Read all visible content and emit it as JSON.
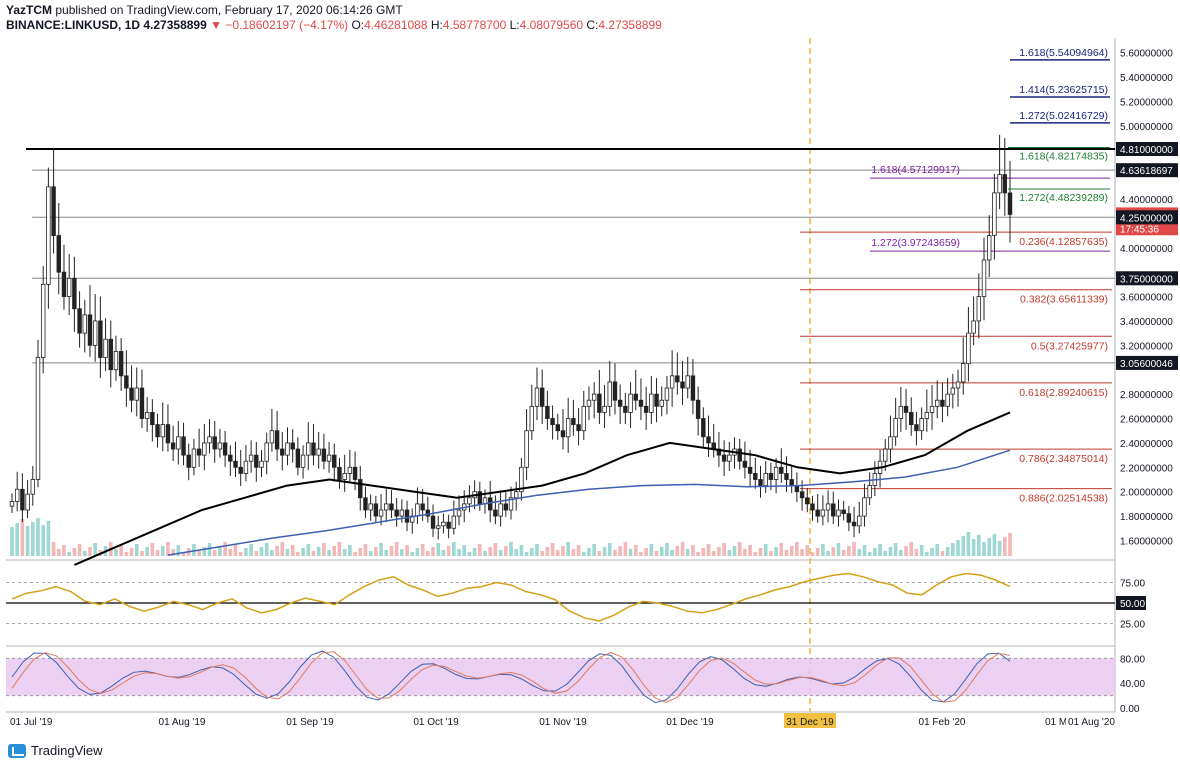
{
  "header": {
    "author": "YazTCM",
    "published_text": "published on TradingView.com, February 17, 2020 06:14:26 GMT",
    "symbol": "BINANCE:LINKUSD, 1D",
    "last": "4.27358899",
    "change_arrow": "▼",
    "change": "−0.18602197 (−4.17%)",
    "o_label": "O:",
    "o_value": "4.46281088",
    "h_label": "H:",
    "h_value": "4.58778700",
    "l_label": "L:",
    "l_value": "4.08079560",
    "c_label": "C:",
    "c_value": "4.27358899"
  },
  "branding": {
    "name": "TradingView"
  },
  "colors": {
    "up": "#26a69a",
    "down": "#e04848",
    "fib": "#c0392b",
    "fib_ext_green": "#1e7e34",
    "fib_ext_purple": "#7b1fa2",
    "fib_ext_blue": "#1a237e",
    "ma_black": "#000000",
    "ma_blue": "#3f5fb0",
    "rsi": "#d4a017",
    "stoch_band": "#e8c8f0"
  },
  "chart_data": {
    "type": "candlestick",
    "price_axis": {
      "ylim": [
        1.44,
        5.72
      ],
      "ticks": [
        "5.60000000",
        "5.40000000",
        "5.20000000",
        "5.00000000",
        "4.40000000",
        "4.00000000",
        "3.60000000",
        "3.40000000",
        "3.20000000",
        "2.80000000",
        "2.60000000",
        "2.40000000",
        "2.20000000",
        "2.00000000",
        "1.80000000",
        "1.60000000"
      ],
      "tick_values": [
        5.6,
        5.4,
        5.2,
        5.0,
        4.4,
        4.0,
        3.6,
        3.4,
        3.2,
        2.8,
        2.6,
        2.4,
        2.2,
        2.0,
        1.8,
        1.6
      ],
      "labels": [
        {
          "value": 4.81,
          "text": "4.81000000",
          "style": "dark"
        },
        {
          "value": 4.63618697,
          "text": "4.63618697",
          "style": "dark"
        },
        {
          "value": 4.27358899,
          "text": "4.27358899",
          "style": "red"
        },
        {
          "value": 4.16,
          "text": "17:45:36",
          "style": "red"
        },
        {
          "value": 4.25,
          "text": "4.25000000",
          "style": "dark"
        },
        {
          "value": 3.75,
          "text": "3.75000000",
          "style": "dark"
        },
        {
          "value": 3.056,
          "text": "3.05600046",
          "style": "dark"
        }
      ]
    },
    "date_axis": {
      "labels": [
        "01 Aug '19",
        "01 Sep '19",
        "01 Oct '19",
        "01 Nov '19",
        "01 Dec '19",
        "01 Feb '20"
      ],
      "first_label": "01 Jul '19",
      "highlight": "31 Dec '19",
      "right_labels": [
        "01 Mar '20",
        "01 Aug '20"
      ]
    },
    "horizontal_levels": [
      {
        "value": 4.81,
        "style": "thick"
      },
      {
        "value": 4.63618697,
        "style": "thin"
      },
      {
        "value": 4.25,
        "style": "thin"
      },
      {
        "value": 3.75,
        "style": "thin"
      },
      {
        "value": 3.056,
        "style": "thin"
      }
    ],
    "fib_retracement": [
      {
        "ratio": "0.236",
        "value": "4.12857635"
      },
      {
        "ratio": "0.382",
        "value": "3.65611339"
      },
      {
        "ratio": "0.5",
        "value": "3.27425977"
      },
      {
        "ratio": "0.618",
        "value": "2.89240615"
      },
      {
        "ratio": "0.786",
        "value": "2.34875014"
      },
      {
        "ratio": "0.886",
        "value": "2.02514538"
      }
    ],
    "fib_extensions": [
      {
        "ratio": "1.618",
        "value": "5.54094964",
        "color": "blue"
      },
      {
        "ratio": "1.414",
        "value": "5.23625715",
        "color": "blue"
      },
      {
        "ratio": "1.272",
        "value": "5.02416729",
        "color": "blue"
      },
      {
        "ratio": "1.618",
        "value": "4.82174835",
        "color": "green"
      },
      {
        "ratio": "1.272",
        "value": "4.48239289",
        "color": "green"
      },
      {
        "ratio": "1.618",
        "value": "4.57129917",
        "color": "purple"
      },
      {
        "ratio": "1.272",
        "value": "3.97243659",
        "color": "purple"
      }
    ],
    "candles": [
      1.92,
      2.02,
      1.85,
      1.98,
      2.1,
      3.1,
      3.7,
      4.5,
      4.1,
      3.8,
      3.6,
      3.75,
      3.5,
      3.3,
      3.45,
      3.2,
      3.4,
      3.1,
      3.25,
      3.0,
      3.15,
      2.95,
      2.85,
      2.75,
      2.85,
      2.6,
      2.65,
      2.55,
      2.45,
      2.55,
      2.4,
      2.35,
      2.45,
      2.3,
      2.2,
      2.35,
      2.3,
      2.4,
      2.45,
      2.35,
      2.4,
      2.3,
      2.25,
      2.2,
      2.15,
      2.25,
      2.3,
      2.2,
      2.25,
      2.4,
      2.5,
      2.35,
      2.3,
      2.4,
      2.35,
      2.2,
      2.3,
      2.4,
      2.3,
      2.35,
      2.25,
      2.3,
      2.2,
      2.1,
      2.15,
      2.2,
      2.1,
      1.95,
      1.85,
      1.9,
      1.8,
      1.85,
      1.9,
      1.85,
      1.8,
      1.85,
      1.75,
      1.8,
      1.9,
      1.85,
      1.8,
      1.7,
      1.72,
      1.75,
      1.7,
      1.8,
      1.85,
      1.9,
      1.95,
      2.0,
      1.9,
      1.95,
      1.85,
      1.8,
      1.9,
      1.85,
      1.95,
      2.0,
      2.2,
      2.5,
      2.7,
      2.85,
      2.7,
      2.6,
      2.55,
      2.5,
      2.45,
      2.6,
      2.55,
      2.5,
      2.7,
      2.75,
      2.8,
      2.65,
      2.7,
      2.9,
      2.75,
      2.7,
      2.65,
      2.8,
      2.75,
      2.7,
      2.65,
      2.8,
      2.7,
      2.75,
      2.85,
      2.95,
      2.9,
      2.85,
      2.95,
      2.75,
      2.6,
      2.45,
      2.4,
      2.35,
      2.3,
      2.25,
      2.3,
      2.35,
      2.25,
      2.2,
      2.15,
      2.1,
      2.05,
      2.15,
      2.1,
      2.2,
      2.15,
      2.1,
      2.05,
      2.0,
      1.95,
      1.9,
      1.85,
      1.8,
      1.85,
      1.9,
      1.8,
      1.85,
      1.82,
      1.75,
      1.72,
      1.8,
      1.95,
      2.05,
      2.15,
      2.25,
      2.35,
      2.45,
      2.6,
      2.7,
      2.65,
      2.55,
      2.5,
      2.6,
      2.65,
      2.7,
      2.75,
      2.7,
      2.8,
      2.85,
      2.9,
      3.05,
      3.3,
      3.4,
      3.6,
      3.9,
      4.1,
      4.45,
      4.6,
      4.45,
      4.27358899
    ],
    "ma_200": {
      "start_index": 12,
      "values": [
        1.4,
        1.55,
        1.7,
        1.85,
        1.95,
        2.05,
        2.1,
        2.05,
        2.0,
        1.95,
        2.0,
        2.05,
        2.15,
        2.3,
        2.4,
        2.35,
        2.3,
        2.2,
        2.15,
        2.2,
        2.3,
        2.5,
        2.65
      ]
    },
    "ma_blue": {
      "start_index": 30,
      "values": [
        1.48,
        1.55,
        1.62,
        1.68,
        1.75,
        1.82,
        1.9,
        1.97,
        2.02,
        2.05,
        2.06,
        2.04,
        2.05,
        2.08,
        2.12,
        2.2,
        2.34
      ]
    },
    "rsi": {
      "ticks": [
        "75.00",
        "50.00",
        "25.00"
      ],
      "tick_values": [
        75,
        50,
        25
      ],
      "series": [
        55,
        62,
        65,
        70,
        64,
        52,
        48,
        55,
        46,
        40,
        45,
        52,
        48,
        42,
        50,
        55,
        44,
        38,
        42,
        50,
        56,
        52,
        48,
        60,
        70,
        78,
        82,
        72,
        66,
        58,
        62,
        68,
        70,
        75,
        72,
        64,
        60,
        54,
        40,
        32,
        28,
        35,
        45,
        52,
        50,
        46,
        40,
        38,
        42,
        48,
        55,
        60,
        66,
        70,
        76,
        80,
        84,
        86,
        82,
        76,
        72,
        62,
        60,
        72,
        82,
        86,
        84,
        78,
        70
      ]
    },
    "stoch": {
      "ticks": [
        "80.00",
        "40.00",
        "0.00"
      ],
      "tick_values": [
        80,
        40,
        0
      ]
    }
  }
}
